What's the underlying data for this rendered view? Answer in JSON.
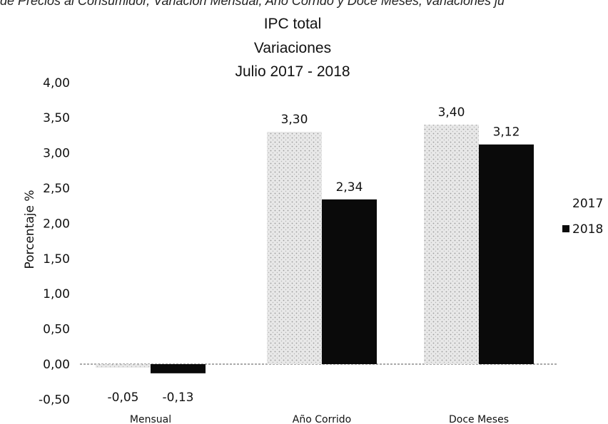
{
  "header": {
    "snippet": "de Precios al Consumidor, Variación Mensual, Año Corrido y Doce Meses, variaciones ju"
  },
  "chart_data": {
    "type": "bar",
    "title": "IPC total",
    "subtitle": "Variaciones",
    "date_range": "Julio 2017 - 2018",
    "ylabel": "Porcentaje %",
    "xlabel": "",
    "ylim": [
      -0.5,
      4.0
    ],
    "yticks": [
      "4,00",
      "3,50",
      "3,00",
      "2,50",
      "2,00",
      "1,50",
      "1,00",
      "0,50",
      "0,00",
      "-0,50"
    ],
    "categories": [
      "Mensual",
      "Año Corrido",
      "Doce Meses"
    ],
    "series": [
      {
        "name": "2017",
        "values": [
          -0.05,
          3.3,
          3.4
        ],
        "labels": [
          "-0,05",
          "3,30",
          "3,40"
        ],
        "color": "#d8d8d8"
      },
      {
        "name": "2018",
        "values": [
          -0.13,
          2.34,
          3.12
        ],
        "labels": [
          "-0,13",
          "2,34",
          "3,12"
        ],
        "color": "#0a0a0a"
      }
    ],
    "legend_position": "right",
    "grid": false
  }
}
